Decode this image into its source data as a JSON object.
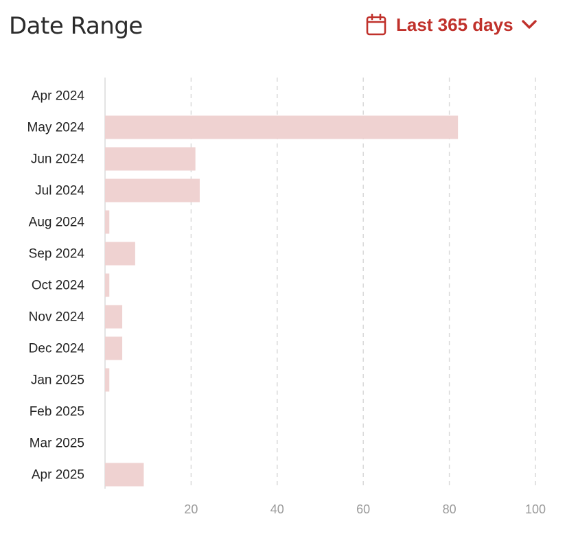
{
  "header": {
    "title": "Date Range",
    "range_label": "Last 365 days",
    "calendar_icon": "calendar-icon",
    "chevron_icon": "chevron-down-icon"
  },
  "colors": {
    "accent": "#c0312b",
    "bar": "#efd2d1",
    "grid": "#d9d9d9",
    "axis": "#e3e3e3"
  },
  "chart_data": {
    "type": "bar",
    "orientation": "horizontal",
    "title": "",
    "xlabel": "",
    "ylabel": "",
    "categories": [
      "Apr 2024",
      "May 2024",
      "Jun 2024",
      "Jul 2024",
      "Aug 2024",
      "Sep 2024",
      "Oct 2024",
      "Nov 2024",
      "Dec 2024",
      "Jan 2025",
      "Feb 2025",
      "Mar 2025",
      "Apr 2025"
    ],
    "values": [
      0,
      82,
      21,
      22,
      1,
      7,
      1,
      4,
      4,
      1,
      0,
      0,
      9
    ],
    "xlim": [
      0,
      100
    ],
    "xticks": [
      20,
      40,
      60,
      80,
      100
    ],
    "grid": true
  }
}
